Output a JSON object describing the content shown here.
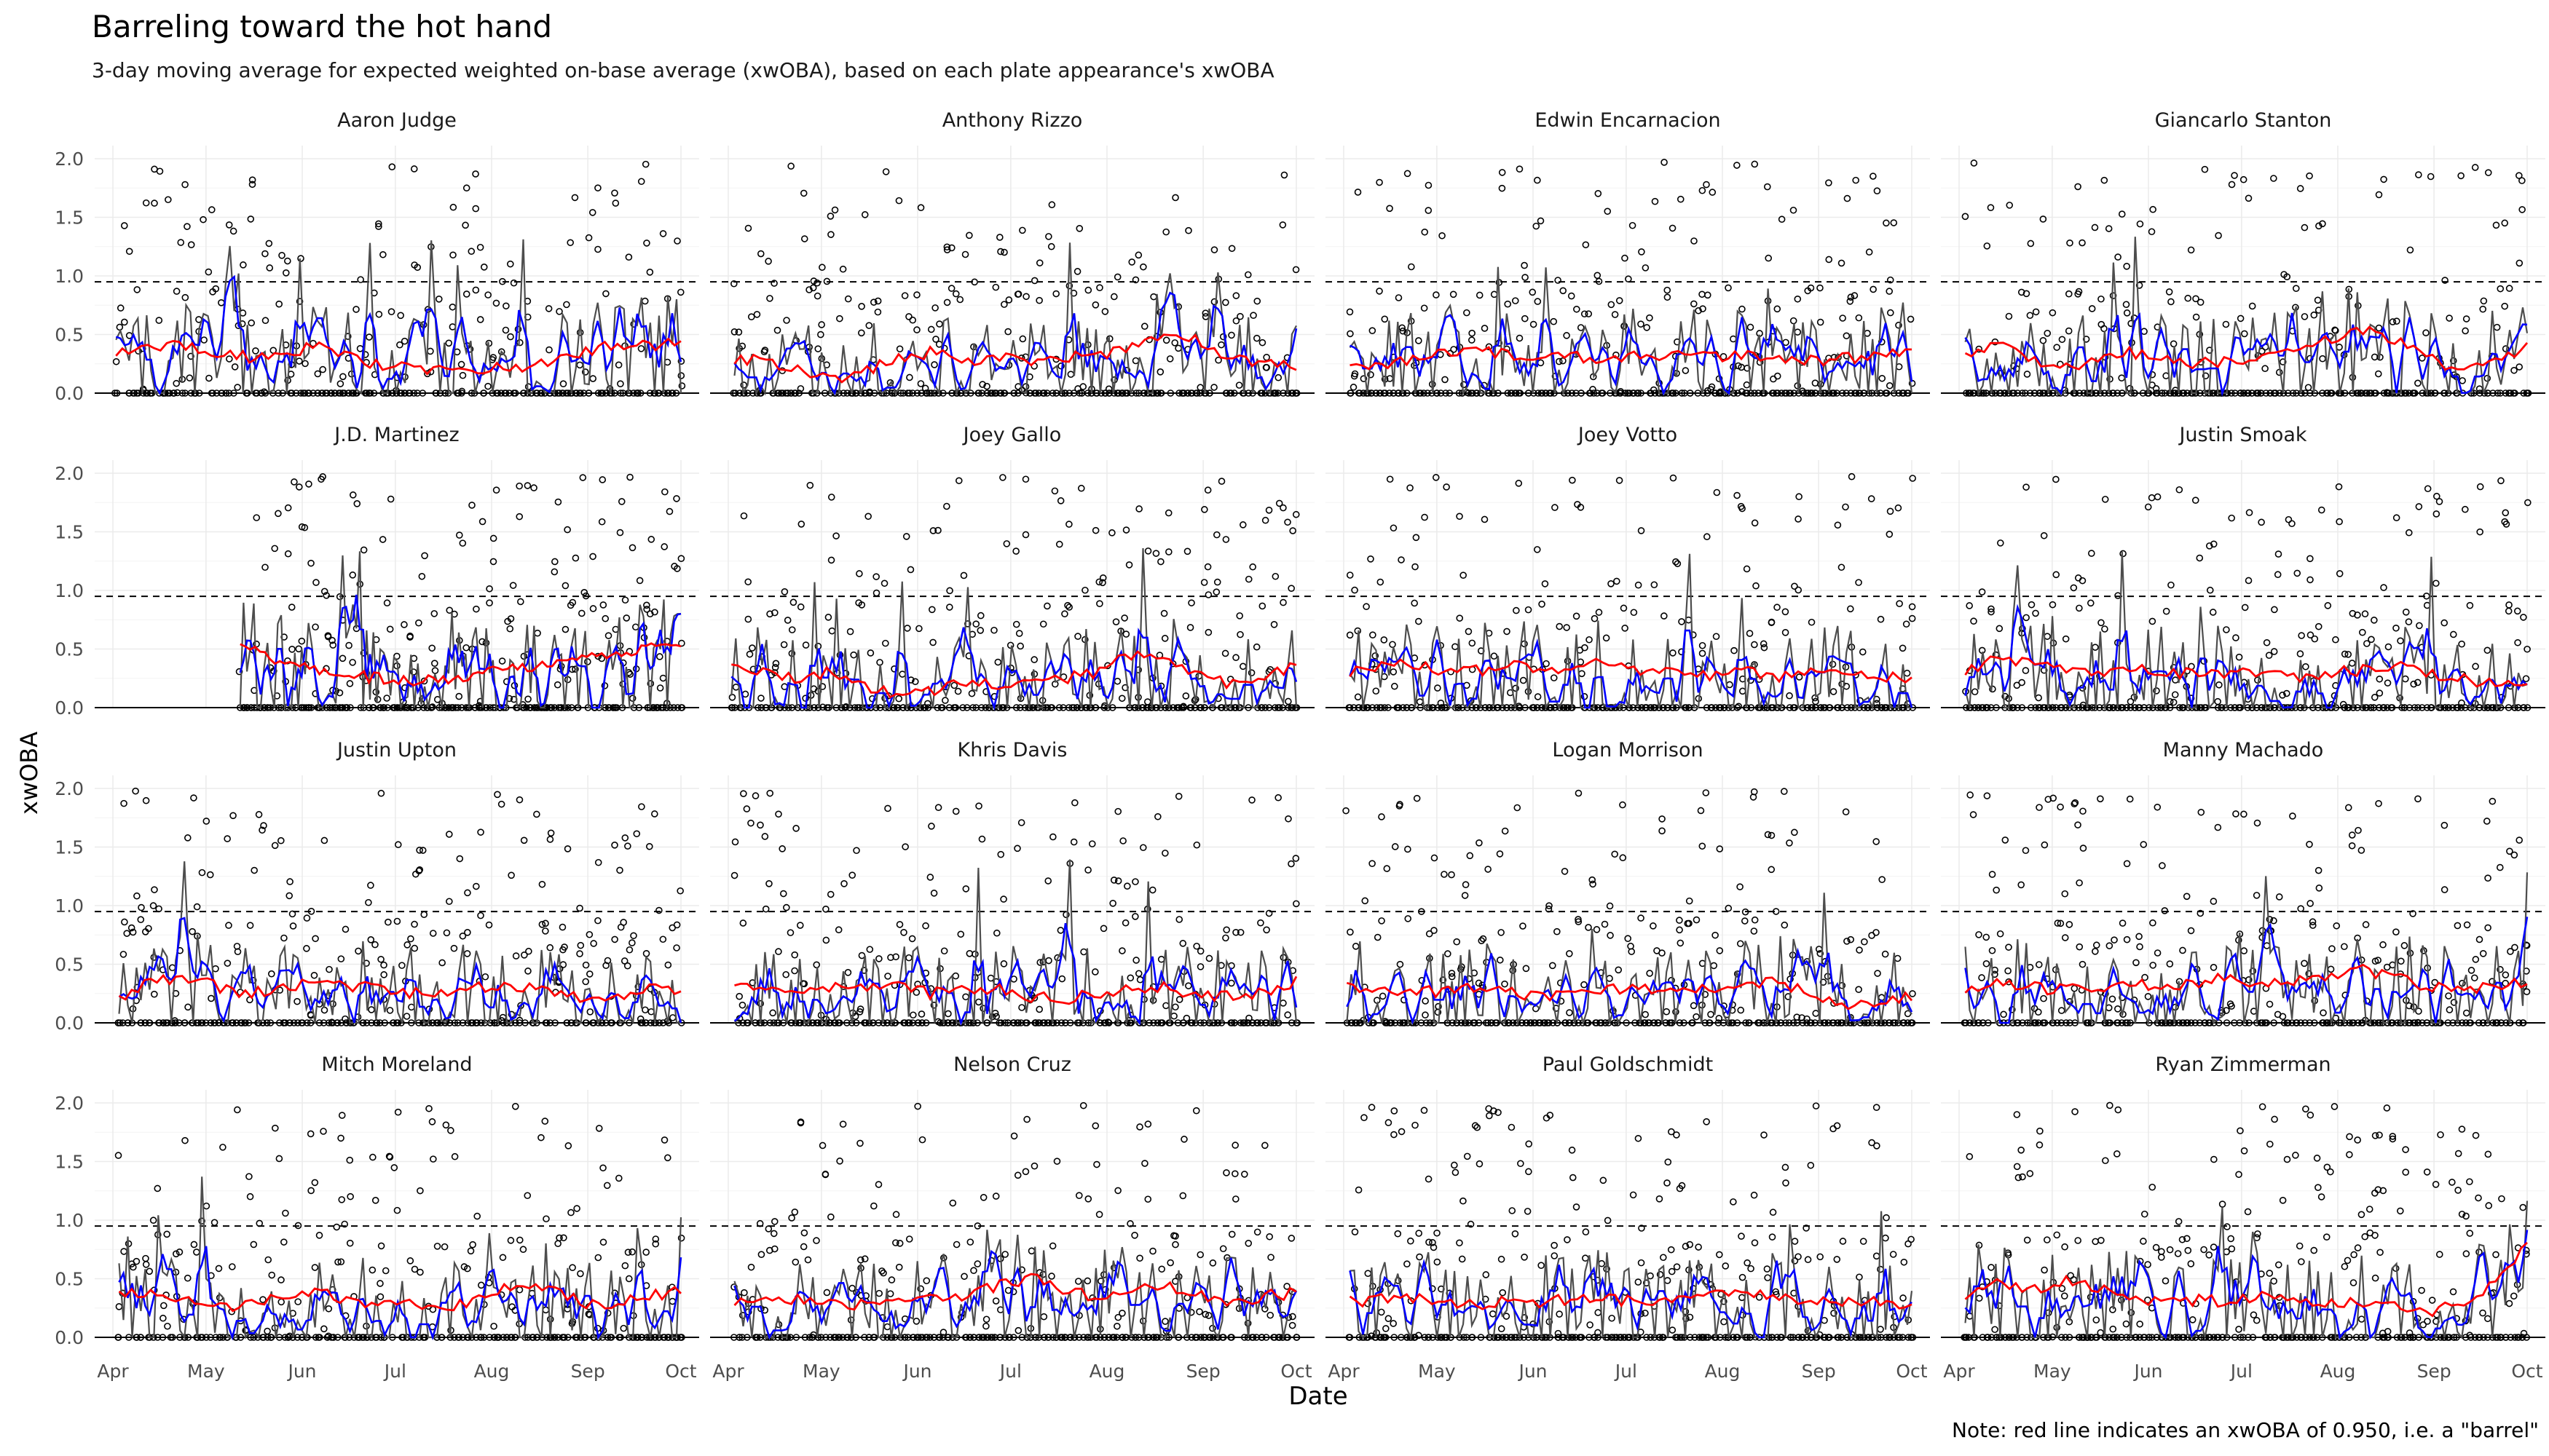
{
  "title": "Barreling toward the hot hand",
  "subtitle": "3-day moving average for expected weighted on-base average (xwOBA), based on each plate appearance's xwOBA",
  "caption": "Note: red line indicates an xwOBA of 0.950, i.e. a \"barrel\"",
  "xlabel": "Date",
  "ylabel": "xwOBA",
  "chart_data": {
    "type": "line",
    "facets": [
      "Aaron Judge",
      "Anthony Rizzo",
      "Edwin Encarnacion",
      "Giancarlo Stanton",
      "J.D. Martinez",
      "Joey Gallo",
      "Joey Votto",
      "Justin Smoak",
      "Justin Upton",
      "Khris Davis",
      "Logan Morrison",
      "Manny Machado",
      "Mitch Moreland",
      "Nelson Cruz",
      "Paul Goldschmidt",
      "Ryan Zimmerman"
    ],
    "x_tick_labels": [
      "Apr",
      "May",
      "Jun",
      "Jul",
      "Aug",
      "Sep",
      "Oct"
    ],
    "x_ticks": [
      "2017-04-01",
      "2017-05-01",
      "2017-06-01",
      "2017-07-01",
      "2017-08-01",
      "2017-09-01",
      "2017-10-01"
    ],
    "xlim": [
      "2017-04-01",
      "2017-10-01"
    ],
    "y_ticks": [
      0.0,
      0.5,
      1.0,
      1.5,
      2.0
    ],
    "y_tick_labels": [
      "0.0",
      "0.5",
      "1.0",
      "1.5",
      "2.0"
    ],
    "ylim": [
      0,
      2.05
    ],
    "reference_line": {
      "y": 0.95,
      "style": "dashed"
    },
    "layers": [
      {
        "name": "plate appearance xwOBA",
        "mark": "point",
        "color": "#000000"
      },
      {
        "name": "daily xwOBA",
        "mark": "line",
        "color": "#4d4d4d"
      },
      {
        "name": "3-day moving average",
        "mark": "line",
        "color": "#0000ff"
      },
      {
        "name": "moving average (smoothed)",
        "mark": "line",
        "color": "#ff0000"
      }
    ],
    "series": [
      {
        "name": "Aaron Judge",
        "start": "2017-04-02",
        "end": "2017-10-01",
        "ma_red": [
          0.32,
          0.38,
          0.42,
          0.35,
          0.3,
          0.33,
          0.4,
          0.3,
          0.24,
          0.22,
          0.18,
          0.2,
          0.22,
          0.25,
          0.35,
          0.42,
          0.4,
          0.45
        ]
      },
      {
        "name": "Anthony Rizzo",
        "start": "2017-04-03",
        "end": "2017-10-01",
        "ma_red": [
          0.3,
          0.28,
          0.18,
          0.12,
          0.2,
          0.3,
          0.35,
          0.28,
          0.3,
          0.27,
          0.3,
          0.32,
          0.38,
          0.5,
          0.45,
          0.3,
          0.25,
          0.24
        ]
      },
      {
        "name": "Edwin Encarnacion",
        "start": "2017-04-03",
        "end": "2017-10-01",
        "ma_red": [
          0.2,
          0.25,
          0.28,
          0.35,
          0.38,
          0.3,
          0.35,
          0.3,
          0.3,
          0.32,
          0.35,
          0.3,
          0.32,
          0.3,
          0.28,
          0.3,
          0.32,
          0.38
        ]
      },
      {
        "name": "Giancarlo Stanton",
        "start": "2017-04-03",
        "end": "2017-10-01",
        "ma_red": [
          0.32,
          0.4,
          0.3,
          0.2,
          0.3,
          0.35,
          0.3,
          0.25,
          0.28,
          0.32,
          0.35,
          0.45,
          0.55,
          0.45,
          0.3,
          0.2,
          0.3,
          0.38
        ]
      },
      {
        "name": "J.D. Martinez",
        "start": "2017-05-12",
        "end": "2017-10-01",
        "ma_red": [
          0.55,
          0.42,
          0.35,
          0.3,
          0.28,
          0.25,
          0.22,
          0.24,
          0.26,
          0.3,
          0.35,
          0.35,
          0.4,
          0.45,
          0.48,
          0.5,
          0.55
        ]
      },
      {
        "name": "Joey Gallo",
        "start": "2017-04-02",
        "end": "2017-10-01",
        "ma_red": [
          0.35,
          0.3,
          0.25,
          0.3,
          0.18,
          0.12,
          0.15,
          0.22,
          0.18,
          0.2,
          0.25,
          0.3,
          0.45,
          0.4,
          0.3,
          0.2,
          0.25,
          0.35
        ]
      },
      {
        "name": "Joey Votto",
        "start": "2017-04-03",
        "end": "2017-10-01",
        "ma_red": [
          0.3,
          0.35,
          0.38,
          0.3,
          0.32,
          0.35,
          0.3,
          0.38,
          0.35,
          0.32,
          0.3,
          0.28,
          0.3,
          0.25,
          0.3,
          0.33,
          0.28,
          0.22
        ]
      },
      {
        "name": "Justin Smoak",
        "start": "2017-04-03",
        "end": "2017-10-01",
        "ma_red": [
          0.3,
          0.42,
          0.4,
          0.35,
          0.3,
          0.35,
          0.32,
          0.28,
          0.3,
          0.28,
          0.25,
          0.3,
          0.32,
          0.35,
          0.3,
          0.25,
          0.2,
          0.18
        ]
      },
      {
        "name": "Justin Upton",
        "start": "2017-04-03",
        "end": "2017-10-01",
        "ma_red": [
          0.2,
          0.35,
          0.4,
          0.3,
          0.25,
          0.3,
          0.35,
          0.3,
          0.3,
          0.25,
          0.28,
          0.3,
          0.32,
          0.28,
          0.22,
          0.2,
          0.3,
          0.28
        ]
      },
      {
        "name": "Khris Davis",
        "start": "2017-04-03",
        "end": "2017-10-01",
        "ma_red": [
          0.35,
          0.32,
          0.28,
          0.3,
          0.32,
          0.3,
          0.25,
          0.3,
          0.28,
          0.22,
          0.2,
          0.25,
          0.3,
          0.3,
          0.25,
          0.22,
          0.25,
          0.35
        ]
      },
      {
        "name": "Logan Morrison",
        "start": "2017-04-02",
        "end": "2017-10-01",
        "ma_red": [
          0.3,
          0.3,
          0.25,
          0.28,
          0.3,
          0.25,
          0.22,
          0.25,
          0.28,
          0.3,
          0.25,
          0.3,
          0.35,
          0.35,
          0.25,
          0.12,
          0.2,
          0.22
        ]
      },
      {
        "name": "Manny Machado",
        "start": "2017-04-03",
        "end": "2017-10-01",
        "ma_red": [
          0.3,
          0.35,
          0.3,
          0.28,
          0.3,
          0.33,
          0.3,
          0.35,
          0.38,
          0.32,
          0.35,
          0.4,
          0.45,
          0.38,
          0.3,
          0.28,
          0.32,
          0.35
        ]
      },
      {
        "name": "Mitch Moreland",
        "start": "2017-04-03",
        "end": "2017-10-01",
        "ma_red": [
          0.35,
          0.4,
          0.3,
          0.25,
          0.3,
          0.35,
          0.4,
          0.3,
          0.3,
          0.28,
          0.25,
          0.35,
          0.45,
          0.4,
          0.3,
          0.28,
          0.35,
          0.4
        ]
      },
      {
        "name": "Nelson Cruz",
        "start": "2017-04-03",
        "end": "2017-10-01",
        "ma_red": [
          0.3,
          0.35,
          0.32,
          0.3,
          0.28,
          0.3,
          0.32,
          0.35,
          0.45,
          0.5,
          0.4,
          0.35,
          0.38,
          0.45,
          0.35,
          0.3,
          0.35,
          0.38
        ]
      },
      {
        "name": "Paul Goldschmidt",
        "start": "2017-04-03",
        "end": "2017-10-01",
        "ma_red": [
          0.3,
          0.32,
          0.35,
          0.3,
          0.28,
          0.32,
          0.3,
          0.35,
          0.32,
          0.3,
          0.32,
          0.35,
          0.38,
          0.35,
          0.3,
          0.32,
          0.3,
          0.28
        ]
      },
      {
        "name": "Ryan Zimmerman",
        "start": "2017-04-03",
        "end": "2017-10-01",
        "ma_red": [
          0.35,
          0.45,
          0.4,
          0.5,
          0.42,
          0.35,
          0.3,
          0.32,
          0.3,
          0.35,
          0.3,
          0.28,
          0.3,
          0.25,
          0.2,
          0.3,
          0.45,
          0.8
        ]
      }
    ]
  }
}
